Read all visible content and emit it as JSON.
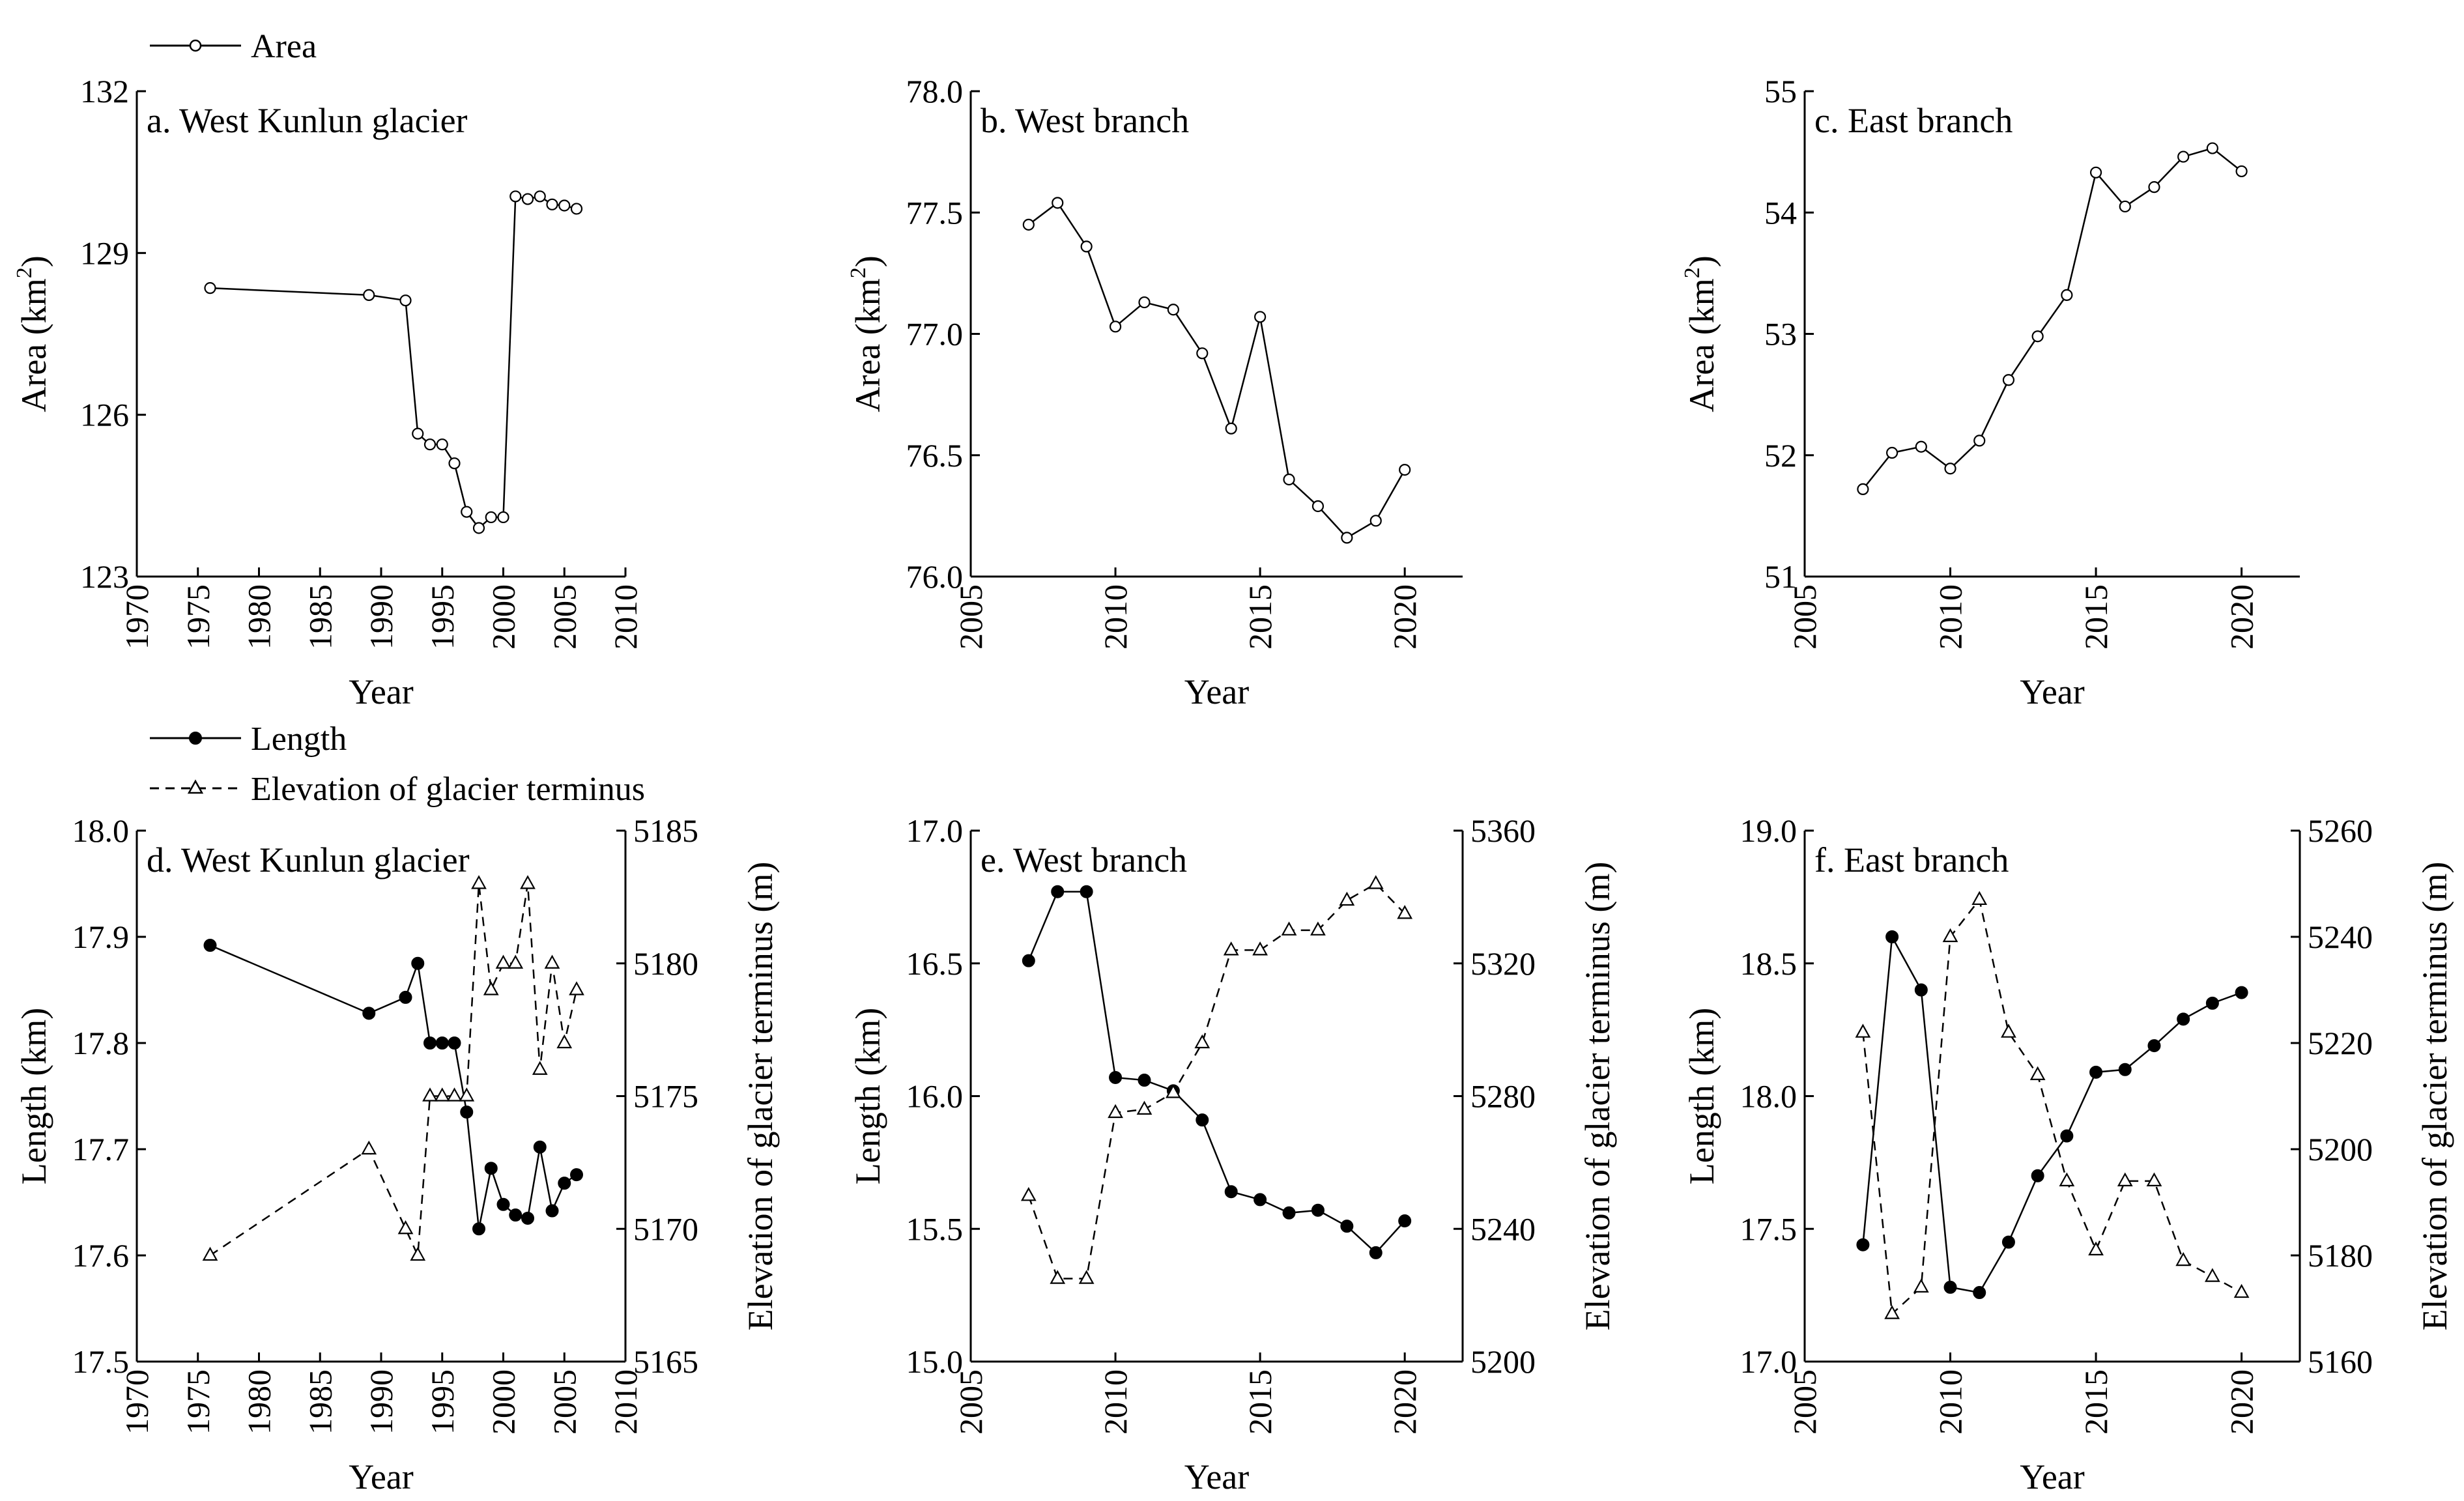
{
  "figure": {
    "legend_top": [
      {
        "label": "Area",
        "style": "solid",
        "marker": "open-circle"
      }
    ],
    "legend_bottom": [
      {
        "label": "Length",
        "style": "solid",
        "marker": "filled-circle"
      },
      {
        "label": "Elevation of glacier terminus",
        "style": "dashed",
        "marker": "open-triangle"
      }
    ]
  },
  "chart_data": [
    {
      "id": "a",
      "type": "line",
      "title": "a. West Kunlun glacier",
      "xlabel": "Year",
      "ylabel": "Area (km²)",
      "ylabel_main": "Area (km",
      "ylabel_sup": "2",
      "ylabel_end": ")",
      "xlim": [
        1970,
        2010
      ],
      "xticks": [
        1970,
        1975,
        1980,
        1985,
        1990,
        1995,
        2000,
        2005,
        2010
      ],
      "ylim": [
        123,
        132
      ],
      "yticks": [
        123,
        126,
        129,
        132
      ],
      "ytick_decimals": 0,
      "series": [
        {
          "name": "Area",
          "x": [
            1976,
            1989,
            1992,
            1993,
            1994,
            1995,
            1996,
            1997,
            1998,
            1999,
            2000,
            2001,
            2002,
            2003,
            2004,
            2005,
            2006
          ],
          "y": [
            128.35,
            128.22,
            128.12,
            125.65,
            125.45,
            125.45,
            125.1,
            124.2,
            123.9,
            124.1,
            124.1,
            130.05,
            130.0,
            130.05,
            129.9,
            129.88,
            129.82
          ]
        }
      ]
    },
    {
      "id": "b",
      "type": "line",
      "title": "b. West branch",
      "xlabel": "Year",
      "ylabel": "Area (km²)",
      "ylabel_main": "Area (km",
      "ylabel_sup": "2",
      "ylabel_end": ")",
      "xlim": [
        2005,
        2022
      ],
      "xticks": [
        2005,
        2010,
        2015,
        2020
      ],
      "ylim": [
        76.0,
        78.0
      ],
      "yticks": [
        76.0,
        76.5,
        77.0,
        77.5,
        78.0
      ],
      "ytick_decimals": 1,
      "series": [
        {
          "name": "Area",
          "x": [
            2007,
            2008,
            2009,
            2010,
            2011,
            2012,
            2013,
            2014,
            2015,
            2016,
            2017,
            2018,
            2019,
            2020
          ],
          "y": [
            77.45,
            77.54,
            77.36,
            77.03,
            77.13,
            77.1,
            76.92,
            76.61,
            77.07,
            76.4,
            76.29,
            76.16,
            76.23,
            76.44
          ]
        }
      ]
    },
    {
      "id": "c",
      "type": "line",
      "title": "c. East branch",
      "xlabel": "Year",
      "ylabel": "Area (km²)",
      "ylabel_main": "Area (km",
      "ylabel_sup": "2",
      "ylabel_end": ")",
      "xlim": [
        2005,
        2022
      ],
      "xticks": [
        2005,
        2010,
        2015,
        2020
      ],
      "ylim": [
        51,
        55
      ],
      "yticks": [
        51,
        52,
        53,
        54,
        55
      ],
      "ytick_decimals": 0,
      "series": [
        {
          "name": "Area",
          "x": [
            2007,
            2008,
            2009,
            2010,
            2011,
            2012,
            2013,
            2014,
            2015,
            2016,
            2017,
            2018,
            2019,
            2020
          ],
          "y": [
            51.72,
            52.02,
            52.07,
            51.89,
            52.12,
            52.62,
            52.98,
            53.32,
            54.33,
            54.05,
            54.21,
            54.46,
            54.53,
            54.34
          ]
        }
      ]
    },
    {
      "id": "d",
      "type": "line",
      "title": "d. West Kunlun glacier",
      "xlabel": "Year",
      "ylabel": "Length (km)",
      "ylabel2": "Elevation of glacier terminus (m)",
      "xlim": [
        1970,
        2010
      ],
      "xticks": [
        1970,
        1975,
        1980,
        1985,
        1990,
        1995,
        2000,
        2005,
        2010
      ],
      "ylim": [
        17.5,
        18.0
      ],
      "yticks": [
        17.5,
        17.6,
        17.7,
        17.8,
        17.9,
        18.0
      ],
      "ytick_decimals": 1,
      "ylim2": [
        5165,
        5185
      ],
      "yticks2": [
        5165,
        5170,
        5175,
        5180,
        5185
      ],
      "ytick2_decimals": 0,
      "series": [
        {
          "name": "Length",
          "axis": "left",
          "x": [
            1976,
            1989,
            1992,
            1993,
            1994,
            1995,
            1996,
            1997,
            1998,
            1999,
            2000,
            2001,
            2002,
            2003,
            2004,
            2005,
            2006
          ],
          "y": [
            17.892,
            17.828,
            17.843,
            17.875,
            17.8,
            17.8,
            17.8,
            17.735,
            17.625,
            17.682,
            17.648,
            17.638,
            17.635,
            17.702,
            17.642,
            17.668,
            17.676
          ]
        },
        {
          "name": "Elevation of glacier terminus",
          "axis": "right",
          "x": [
            1976,
            1989,
            1992,
            1993,
            1994,
            1995,
            1996,
            1997,
            1998,
            1999,
            2000,
            2001,
            2002,
            2003,
            2004,
            2005,
            2006
          ],
          "y": [
            5169,
            5173,
            5170,
            5169,
            5175,
            5175,
            5175,
            5175,
            5183,
            5179,
            5180,
            5180,
            5183,
            5176,
            5180,
            5177,
            5179
          ]
        }
      ]
    },
    {
      "id": "e",
      "type": "line",
      "title": "e. West branch",
      "xlabel": "Year",
      "ylabel": "Length (km)",
      "ylabel2": "Elevation of glacier terminus (m)",
      "xlim": [
        2005,
        2022
      ],
      "xticks": [
        2005,
        2010,
        2015,
        2020
      ],
      "ylim": [
        15.0,
        17.0
      ],
      "yticks": [
        15.0,
        15.5,
        16.0,
        16.5,
        17.0
      ],
      "ytick_decimals": 1,
      "ylim2": [
        5200,
        5360
      ],
      "yticks2": [
        5200,
        5240,
        5280,
        5320,
        5360
      ],
      "ytick2_decimals": 0,
      "series": [
        {
          "name": "Length",
          "axis": "left",
          "x": [
            2007,
            2008,
            2009,
            2010,
            2011,
            2012,
            2013,
            2014,
            2015,
            2016,
            2017,
            2018,
            2019,
            2020
          ],
          "y": [
            16.51,
            16.77,
            16.77,
            16.07,
            16.06,
            16.02,
            15.91,
            15.64,
            15.61,
            15.56,
            15.57,
            15.51,
            15.41,
            15.53
          ]
        },
        {
          "name": "Elevation of glacier terminus",
          "axis": "right",
          "x": [
            2007,
            2008,
            2009,
            2010,
            2011,
            2012,
            2013,
            2014,
            2015,
            2016,
            2017,
            2018,
            2019,
            2020
          ],
          "y": [
            5250,
            5225,
            5225,
            5275,
            5276,
            5281,
            5296,
            5324,
            5324,
            5330,
            5330,
            5339,
            5344,
            5335
          ]
        }
      ]
    },
    {
      "id": "f",
      "type": "line",
      "title": "f. East branch",
      "xlabel": "Year",
      "ylabel": "Length (km)",
      "ylabel2": "Elevation of glacier terminus (m)",
      "xlim": [
        2005,
        2022
      ],
      "xticks": [
        2005,
        2010,
        2015,
        2020
      ],
      "ylim": [
        17.0,
        19.0
      ],
      "yticks": [
        17.0,
        17.5,
        18.0,
        18.5,
        19.0
      ],
      "ytick_decimals": 1,
      "ylim2": [
        5160,
        5260
      ],
      "yticks2": [
        5160,
        5180,
        5200,
        5220,
        5240,
        5260
      ],
      "ytick2_decimals": 0,
      "series": [
        {
          "name": "Length",
          "axis": "left",
          "x": [
            2007,
            2008,
            2009,
            2010,
            2011,
            2012,
            2013,
            2014,
            2015,
            2016,
            2017,
            2018,
            2019,
            2020
          ],
          "y": [
            17.44,
            18.6,
            18.4,
            17.28,
            17.26,
            17.45,
            17.7,
            17.85,
            18.09,
            18.1,
            18.19,
            18.29,
            18.35,
            18.39
          ]
        },
        {
          "name": "Elevation of glacier terminus",
          "axis": "right",
          "x": [
            2007,
            2008,
            2009,
            2010,
            2011,
            2012,
            2013,
            2014,
            2015,
            2016,
            2017,
            2018,
            2019,
            2020
          ],
          "y": [
            5222,
            5169,
            5174,
            5240,
            5247,
            5222,
            5214,
            5194,
            5181,
            5194,
            5194,
            5179,
            5176,
            5173
          ]
        }
      ]
    }
  ]
}
